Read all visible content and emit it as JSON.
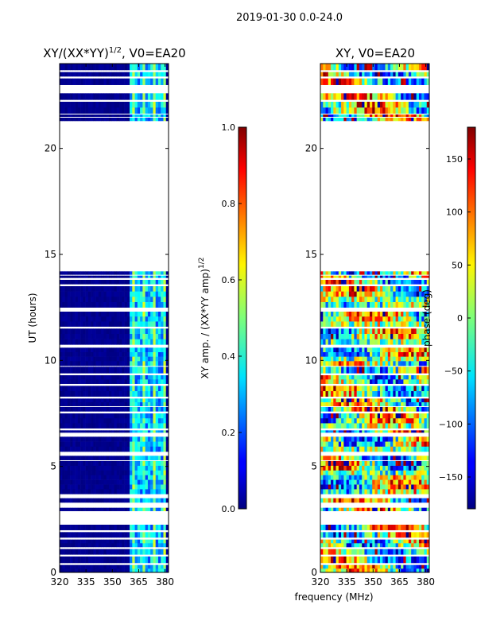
{
  "suptitle": "2019-01-30 0.0-24.0",
  "chart_data": [
    {
      "type": "heatmap",
      "id": "amp",
      "title_main": "XY/(XX*YY)",
      "title_sup": "1/2",
      "title_rest": ", V0=EA20",
      "xlabel": "",
      "ylabel": "UT (hours)",
      "xlim": [
        320,
        382
      ],
      "ylim": [
        0,
        24
      ],
      "xticks": [
        "320",
        "335",
        "350",
        "365",
        "380"
      ],
      "xtick_values": [
        320,
        335,
        350,
        365,
        380
      ],
      "yticks": [
        "0",
        "5",
        "10",
        "15",
        "20"
      ],
      "ytick_values": [
        0,
        5,
        10,
        15,
        20
      ],
      "colormap": "jet",
      "colorbar": {
        "label_main": "XY amp. / (XX*YY amp)",
        "label_sup": "1/2",
        "range": [
          0.0,
          1.0
        ],
        "ticks": [
          "0.0",
          "0.2",
          "0.4",
          "0.6",
          "0.8",
          "1.0"
        ],
        "tick_values": [
          0.0,
          0.2,
          0.4,
          0.6,
          0.8,
          1.0
        ]
      },
      "bright_band_MHz": [
        360,
        381
      ],
      "typical_value_outside_band": 0.0,
      "typical_value_in_band": 0.3
    },
    {
      "type": "heatmap",
      "id": "phase",
      "title_main": "XY, V0=EA20",
      "xlabel": "frequency (MHz)",
      "ylabel": "",
      "xlim": [
        320,
        382
      ],
      "ylim": [
        0,
        24
      ],
      "xticks": [
        "320",
        "335",
        "350",
        "365",
        "380"
      ],
      "xtick_values": [
        320,
        335,
        350,
        365,
        380
      ],
      "yticks": [
        "0",
        "5",
        "10",
        "15",
        "20"
      ],
      "ytick_values": [
        0,
        5,
        10,
        15,
        20
      ],
      "colormap": "jet",
      "colorbar": {
        "label_main": "phase (deg)",
        "range": [
          -180,
          180
        ],
        "ticks": [
          "−150",
          "−100",
          "−50",
          "0",
          "50",
          "100",
          "150"
        ],
        "tick_values": [
          -150,
          -100,
          -50,
          0,
          50,
          100,
          150
        ]
      }
    }
  ],
  "data_segments_UT_hours": [
    [
      0.0,
      0.35
    ],
    [
      0.45,
      0.75
    ],
    [
      0.85,
      1.1
    ],
    [
      1.2,
      1.55
    ],
    [
      1.65,
      1.9
    ],
    [
      2.0,
      2.25
    ],
    [
      2.9,
      3.05
    ],
    [
      3.3,
      3.5
    ],
    [
      3.7,
      5.25
    ],
    [
      5.3,
      5.5
    ],
    [
      5.7,
      6.4
    ],
    [
      6.6,
      6.7
    ],
    [
      6.8,
      7.5
    ],
    [
      7.6,
      7.8
    ],
    [
      7.85,
      8.2
    ],
    [
      8.3,
      8.8
    ],
    [
      8.9,
      9.3
    ],
    [
      9.4,
      9.7
    ],
    [
      9.75,
      10.6
    ],
    [
      10.75,
      11.5
    ],
    [
      11.6,
      12.3
    ],
    [
      12.5,
      13.5
    ],
    [
      13.6,
      13.8
    ],
    [
      13.9,
      14.0
    ],
    [
      14.05,
      14.2
    ],
    [
      21.3,
      21.45
    ],
    [
      21.5,
      21.6
    ],
    [
      21.65,
      22.2
    ],
    [
      22.3,
      22.6
    ],
    [
      23.0,
      23.3
    ],
    [
      23.4,
      23.6
    ],
    [
      23.7,
      24.0
    ]
  ]
}
